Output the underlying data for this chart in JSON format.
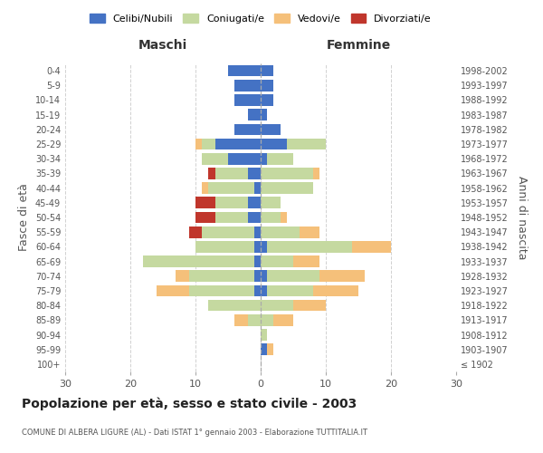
{
  "age_groups": [
    "100+",
    "95-99",
    "90-94",
    "85-89",
    "80-84",
    "75-79",
    "70-74",
    "65-69",
    "60-64",
    "55-59",
    "50-54",
    "45-49",
    "40-44",
    "35-39",
    "30-34",
    "25-29",
    "20-24",
    "15-19",
    "10-14",
    "5-9",
    "0-4"
  ],
  "birth_years": [
    "≤ 1902",
    "1903-1907",
    "1908-1912",
    "1913-1917",
    "1918-1922",
    "1923-1927",
    "1928-1932",
    "1933-1937",
    "1938-1942",
    "1943-1947",
    "1948-1952",
    "1953-1957",
    "1958-1962",
    "1963-1967",
    "1968-1972",
    "1973-1977",
    "1978-1982",
    "1983-1987",
    "1988-1992",
    "1993-1997",
    "1998-2002"
  ],
  "male": {
    "celibi": [
      0,
      0,
      0,
      0,
      0,
      1,
      1,
      1,
      1,
      1,
      2,
      2,
      1,
      2,
      5,
      7,
      4,
      2,
      4,
      4,
      5
    ],
    "coniugati": [
      0,
      0,
      0,
      2,
      8,
      10,
      10,
      17,
      9,
      8,
      5,
      5,
      7,
      5,
      4,
      2,
      0,
      0,
      0,
      0,
      0
    ],
    "vedovi": [
      0,
      0,
      0,
      2,
      0,
      5,
      2,
      0,
      0,
      0,
      0,
      0,
      1,
      0,
      0,
      1,
      0,
      0,
      0,
      0,
      0
    ],
    "divorziati": [
      0,
      0,
      0,
      0,
      0,
      0,
      0,
      0,
      0,
      2,
      3,
      3,
      0,
      1,
      0,
      0,
      0,
      0,
      0,
      0,
      0
    ]
  },
  "female": {
    "nubili": [
      0,
      1,
      0,
      0,
      0,
      1,
      1,
      0,
      1,
      0,
      0,
      0,
      0,
      0,
      1,
      4,
      3,
      1,
      2,
      2,
      2
    ],
    "coniugate": [
      0,
      0,
      1,
      2,
      5,
      7,
      8,
      5,
      13,
      6,
      3,
      3,
      8,
      8,
      4,
      6,
      0,
      0,
      0,
      0,
      0
    ],
    "vedove": [
      0,
      1,
      0,
      3,
      5,
      7,
      7,
      4,
      6,
      3,
      1,
      0,
      0,
      1,
      0,
      0,
      0,
      0,
      0,
      0,
      0
    ],
    "divorziate": [
      0,
      0,
      0,
      0,
      0,
      0,
      0,
      0,
      0,
      0,
      0,
      0,
      0,
      0,
      0,
      0,
      0,
      0,
      0,
      0,
      0
    ]
  },
  "colors": {
    "celibi_nubili": "#4472C4",
    "coniugati": "#C5D9A0",
    "vedovi": "#F5C07A",
    "divorziati": "#C0362C"
  },
  "xlim": 30,
  "title": "Popolazione per età, sesso e stato civile - 2003",
  "subtitle": "COMUNE DI ALBERA LIGURE (AL) - Dati ISTAT 1° gennaio 2003 - Elaborazione TUTTITALIA.IT",
  "xlabel_left": "Maschi",
  "xlabel_right": "Femmine",
  "ylabel_left": "Fasce di età",
  "ylabel_right": "Anni di nascita",
  "legend_labels": [
    "Celibi/Nubili",
    "Coniugati/e",
    "Vedovi/e",
    "Divorziati/e"
  ],
  "background_color": "#ffffff",
  "grid_color": "#cccccc"
}
